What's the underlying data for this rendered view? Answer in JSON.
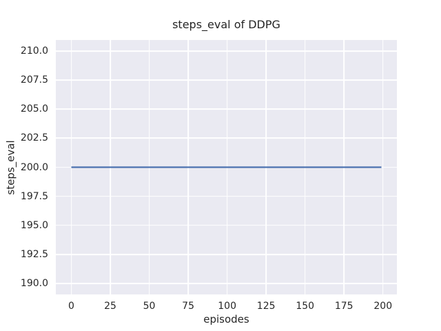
{
  "chart_data": {
    "type": "line",
    "title": "steps_eval of DDPG",
    "xlabel": "episodes",
    "ylabel": "steps_eval",
    "xlim": [
      -9.95,
      208.95
    ],
    "ylim": [
      189.05,
      210.95
    ],
    "xticks": [
      0,
      25,
      50,
      75,
      100,
      125,
      150,
      175,
      200
    ],
    "xtick_labels": [
      "0",
      "25",
      "50",
      "75",
      "100",
      "125",
      "150",
      "175",
      "200"
    ],
    "yticks": [
      190.0,
      192.5,
      195.0,
      197.5,
      200.0,
      202.5,
      205.0,
      207.5,
      210.0
    ],
    "ytick_labels": [
      "190.0",
      "192.5",
      "195.0",
      "197.5",
      "200.0",
      "202.5",
      "205.0",
      "207.5",
      "210.0"
    ],
    "grid": true,
    "legend": false,
    "series": [
      {
        "name": "DDPG",
        "x": [
          0,
          199
        ],
        "y": [
          200.0,
          200.0
        ]
      }
    ]
  },
  "colors": {
    "figure_background": "#ffffff",
    "plot_background": "#eaeaf2",
    "gridline": "#ffffff",
    "line": "#4c72b0",
    "text": "#262626"
  }
}
